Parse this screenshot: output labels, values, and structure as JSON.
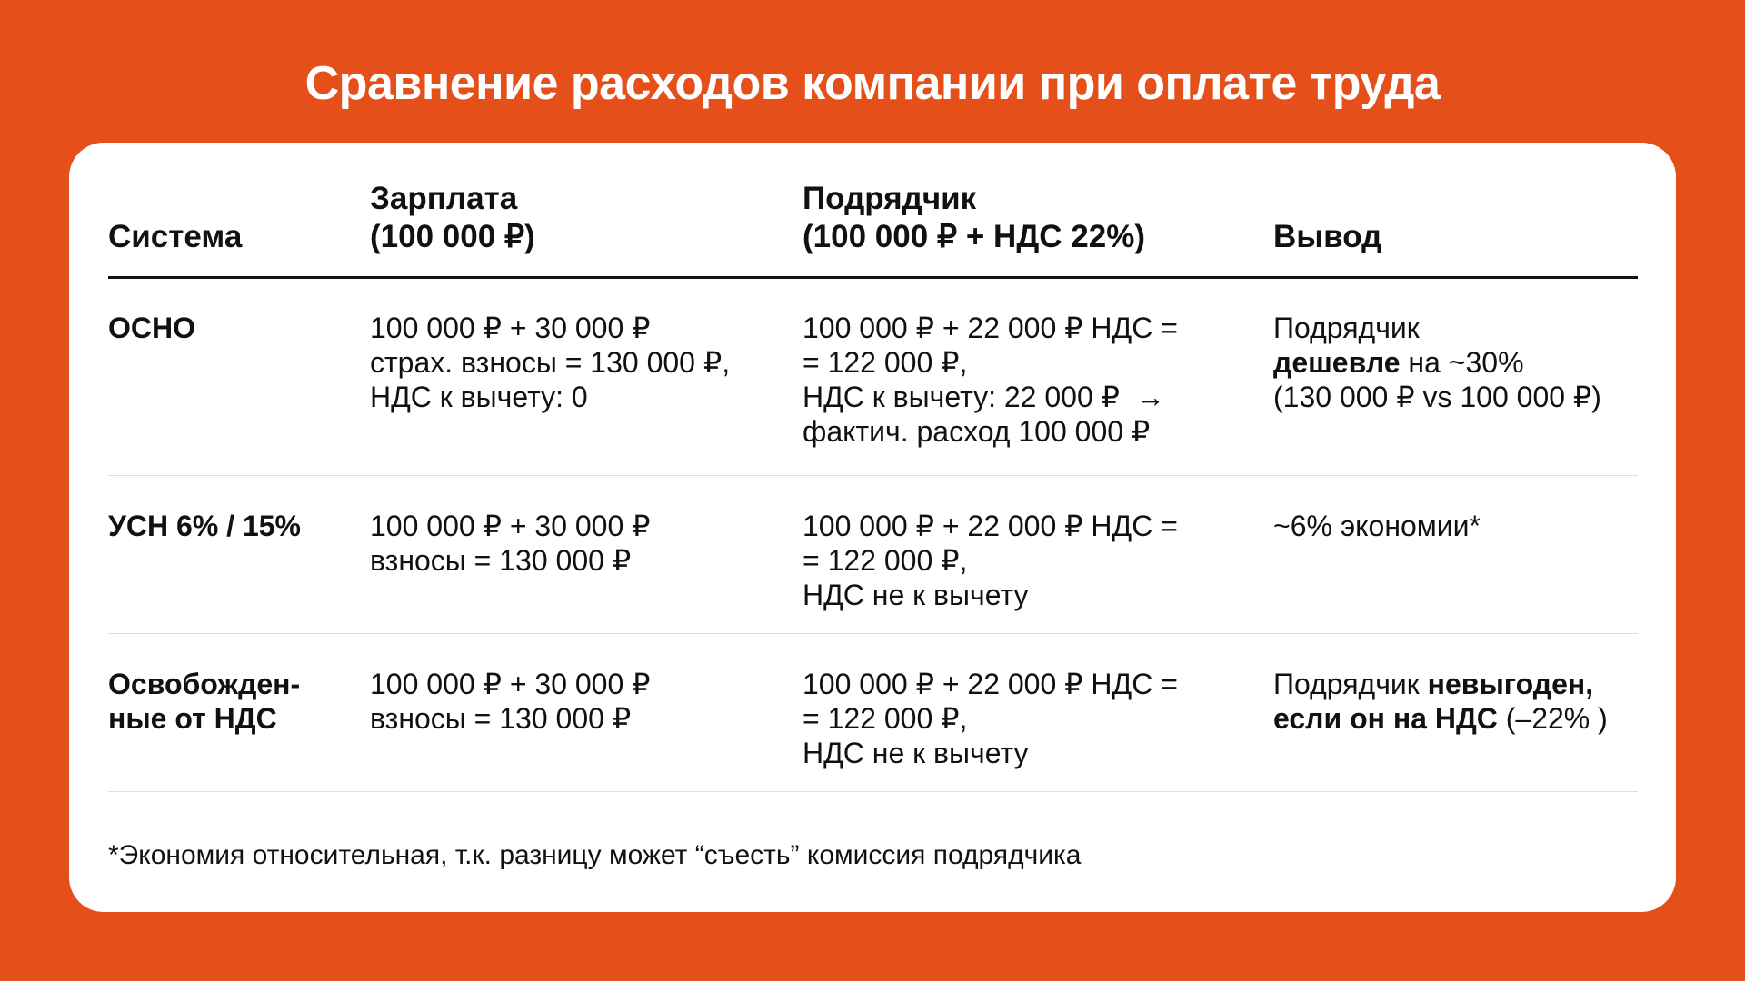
{
  "title": "Сравнение расходов компании при оплате труда",
  "table": {
    "header": [
      [
        "Система"
      ],
      [
        "Зарплата",
        "(100 000 ₽)"
      ],
      [
        "Подрядчик",
        "(100 000 ₽ + НДС 22%)"
      ],
      [
        "Вывод"
      ]
    ],
    "rows": [
      [
        [
          [
            "ОСНО"
          ]
        ],
        [
          [
            "100 000 ₽ + 30 000 ₽"
          ],
          [
            "страх. взносы = 130 000 ₽,"
          ],
          [
            "НДС к вычету: 0"
          ]
        ],
        [
          [
            "100 000 ₽ + 22 000 ₽ НДС ="
          ],
          [
            "= 122 000 ₽,"
          ],
          [
            "НДС к вычету: 22 000 ₽  →"
          ],
          [
            "фактич. расход 100 000 ₽"
          ]
        ],
        [
          [
            "Подрядчик"
          ],
          [
            "дешевле",
            " на ~30%"
          ],
          [
            "(130 000 ₽ vs 100 000 ₽)"
          ]
        ]
      ],
      [
        [
          [
            "УСН 6% / 15%"
          ]
        ],
        [
          [
            "100 000 ₽ + 30 000 ₽"
          ],
          [
            "взносы = 130 000 ₽"
          ]
        ],
        [
          [
            "100 000 ₽ + 22 000 ₽ НДС ="
          ],
          [
            "= 122 000 ₽,"
          ],
          [
            "НДС не к вычету"
          ]
        ],
        [
          [
            "~6% экономии*"
          ]
        ]
      ],
      [
        [
          [
            "Освобожден-"
          ],
          [
            "ные от НДС"
          ]
        ],
        [
          [
            "100 000 ₽ + 30 000 ₽"
          ],
          [
            "взносы = 130 000 ₽"
          ]
        ],
        [
          [
            "100 000 ₽ + 22 000 ₽ НДС ="
          ],
          [
            "= 122 000 ₽,"
          ],
          [
            "НДС не к вычету"
          ]
        ],
        [
          [
            "Подрядчик ",
            "невыгоден,"
          ],
          [
            "если он на НДС",
            " (–22% )"
          ]
        ]
      ]
    ]
  },
  "footnote": "*Экономия относительная, т.к. разницу может “съесть” комиссия подрядчика"
}
